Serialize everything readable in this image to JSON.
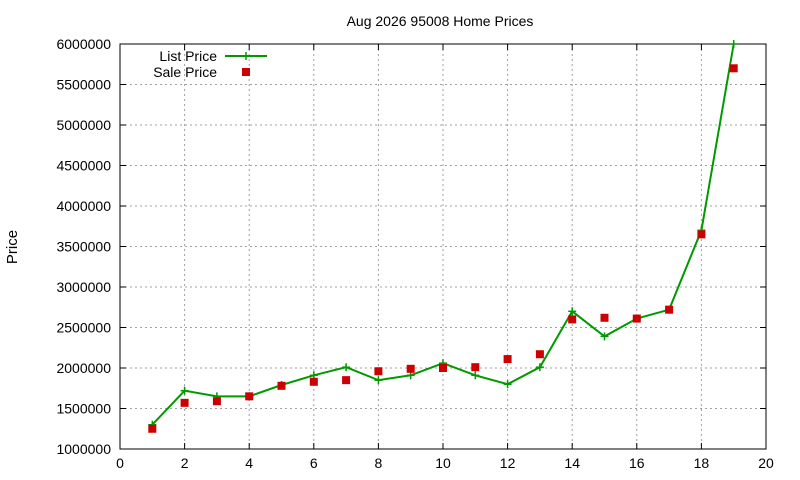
{
  "chart_data": {
    "type": "line",
    "title": "Aug 2026 95008 Home Prices",
    "xlabel": "",
    "ylabel": "Price",
    "xlim": [
      0,
      20
    ],
    "ylim": [
      1000000,
      6000000
    ],
    "xticks": [
      0,
      2,
      4,
      6,
      8,
      10,
      12,
      14,
      16,
      18,
      20
    ],
    "yticks": [
      1000000,
      1500000,
      2000000,
      2500000,
      3000000,
      3500000,
      4000000,
      4500000,
      5000000,
      5500000,
      6000000
    ],
    "grid": true,
    "legend_position": "top-left",
    "series": [
      {
        "name": "List Price",
        "style": "line-with-plus-markers",
        "color": "#009900",
        "x": [
          1,
          2,
          3,
          4,
          5,
          6,
          7,
          8,
          9,
          10,
          11,
          12,
          13,
          14,
          15,
          16,
          17,
          18,
          19
        ],
        "y": [
          1300000,
          1720000,
          1650000,
          1650000,
          1790000,
          1910000,
          2010000,
          1850000,
          1910000,
          2060000,
          1910000,
          1800000,
          2010000,
          2700000,
          2390000,
          2610000,
          2720000,
          3700000,
          6000000
        ]
      },
      {
        "name": "Sale Price",
        "style": "square-markers",
        "color": "#cc0000",
        "x": [
          1,
          2,
          3,
          4,
          5,
          6,
          7,
          8,
          9,
          10,
          11,
          12,
          13,
          14,
          15,
          16,
          17,
          18,
          19
        ],
        "y": [
          1250000,
          1570000,
          1590000,
          1650000,
          1780000,
          1830000,
          1850000,
          1960000,
          1990000,
          2000000,
          2010000,
          2110000,
          2170000,
          2600000,
          2620000,
          2610000,
          2720000,
          3650000,
          5700000
        ]
      }
    ]
  }
}
